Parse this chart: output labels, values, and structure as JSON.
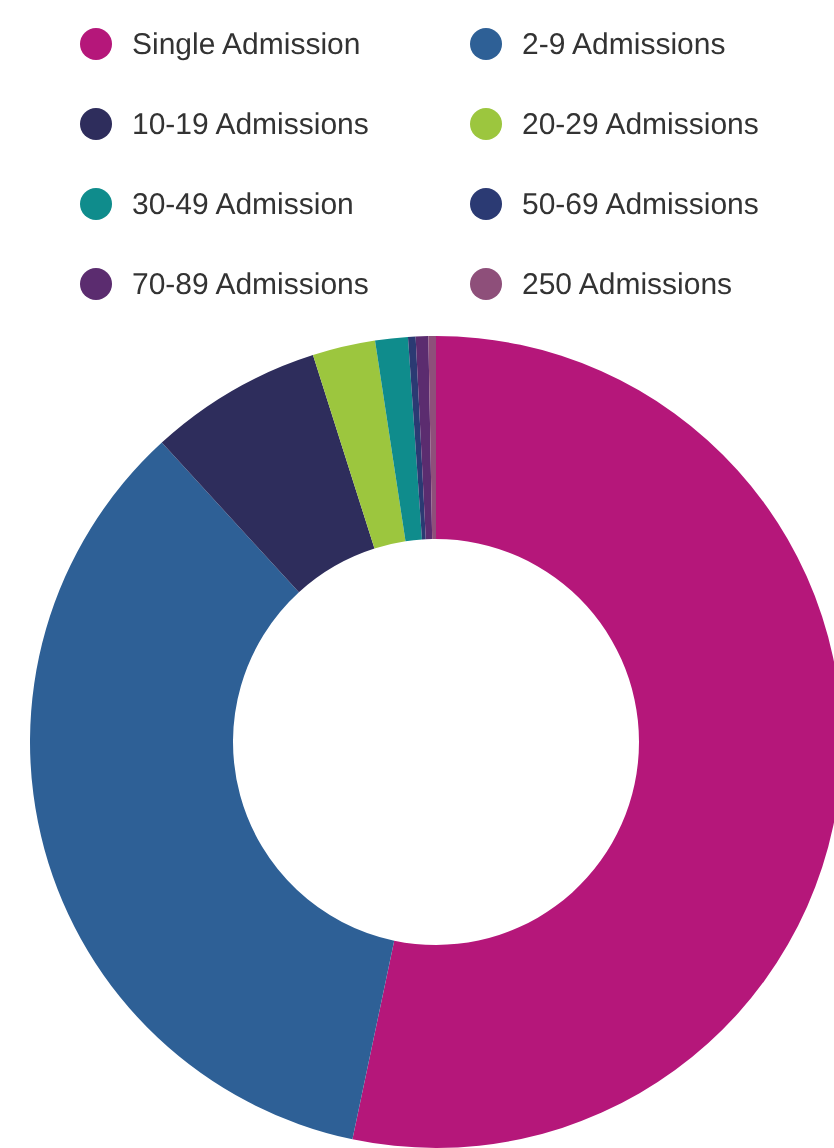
{
  "chart_data": {
    "type": "donut",
    "categories": [
      "Single Admission",
      "2-9 Admissions",
      "10-19 Admissions",
      "20-29 Admissions",
      "30-49 Admission",
      "50-69 Admissions",
      "70-89 Admissions",
      "250 Admissions"
    ],
    "values": [
      53.3,
      34.9,
      6.9,
      2.5,
      1.3,
      0.3,
      0.5,
      0.3
    ],
    "colors": [
      "#b5177a",
      "#2e6096",
      "#2e2d5c",
      "#9cc63e",
      "#0f8c8c",
      "#2b3a73",
      "#5b2c6f",
      "#8e4f7a"
    ],
    "legend": "top"
  }
}
